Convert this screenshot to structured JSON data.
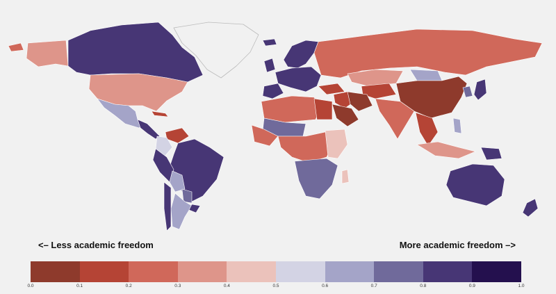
{
  "legend": {
    "left_label": "<– Less academic freedom",
    "right_label": "More academic freedom –>",
    "ticks": [
      "0.0",
      "0.1",
      "0.2",
      "0.3",
      "0.4",
      "0.5",
      "0.6",
      "0.7",
      "0.8",
      "0.9",
      "1.0"
    ],
    "bins": [
      {
        "range": "0.0–0.1",
        "color": "#8e3a2c"
      },
      {
        "range": "0.1–0.2",
        "color": "#b54435"
      },
      {
        "range": "0.2–0.3",
        "color": "#d0685a"
      },
      {
        "range": "0.3–0.4",
        "color": "#de958a"
      },
      {
        "range": "0.4–0.5",
        "color": "#ebc2bb"
      },
      {
        "range": "0.5–0.6",
        "color": "#d3d3e4"
      },
      {
        "range": "0.6–0.7",
        "color": "#a4a4c8"
      },
      {
        "range": "0.7–0.8",
        "color": "#706a9b"
      },
      {
        "range": "0.8–0.9",
        "color": "#473675"
      },
      {
        "range": "0.9–1.0",
        "color": "#24104e"
      }
    ]
  },
  "regions": [
    {
      "name": "Canada",
      "bin": 8
    },
    {
      "name": "Alaska",
      "bin": 3
    },
    {
      "name": "Greenland",
      "bin": null
    },
    {
      "name": "United States",
      "bin": 3
    },
    {
      "name": "Mexico",
      "bin": 6
    },
    {
      "name": "Central America",
      "bin": 8
    },
    {
      "name": "Cuba",
      "bin": 1
    },
    {
      "name": "Venezuela",
      "bin": 1
    },
    {
      "name": "Colombia",
      "bin": 5
    },
    {
      "name": "Brazil",
      "bin": 8
    },
    {
      "name": "Peru",
      "bin": 8
    },
    {
      "name": "Bolivia",
      "bin": 6
    },
    {
      "name": "Paraguay",
      "bin": 7
    },
    {
      "name": "Argentina",
      "bin": 6
    },
    {
      "name": "Chile",
      "bin": 8
    },
    {
      "name": "Uruguay",
      "bin": 8
    },
    {
      "name": "Scandinavia",
      "bin": 8
    },
    {
      "name": "Western Europe",
      "bin": 8
    },
    {
      "name": "Iberia",
      "bin": 8
    },
    {
      "name": "Russia",
      "bin": 2
    },
    {
      "name": "Kazakhstan",
      "bin": 3
    },
    {
      "name": "Mongolia",
      "bin": 6
    },
    {
      "name": "China",
      "bin": 0
    },
    {
      "name": "India",
      "bin": 2
    },
    {
      "name": "Middle East",
      "bin": 1
    },
    {
      "name": "Saudi Arabia",
      "bin": 0
    },
    {
      "name": "Turkey",
      "bin": 1
    },
    {
      "name": "Iran",
      "bin": 0
    },
    {
      "name": "Central Asia",
      "bin": 1
    },
    {
      "name": "Southeast Asia",
      "bin": 1
    },
    {
      "name": "Japan",
      "bin": 8
    },
    {
      "name": "Korea",
      "bin": 7
    },
    {
      "name": "Philippines",
      "bin": 6
    },
    {
      "name": "Indonesia",
      "bin": 3
    },
    {
      "name": "Papua New Guinea",
      "bin": 8
    },
    {
      "name": "Australia",
      "bin": 8
    },
    {
      "name": "New Zealand",
      "bin": 8
    },
    {
      "name": "North Africa",
      "bin": 2
    },
    {
      "name": "Egypt",
      "bin": 1
    },
    {
      "name": "West Africa",
      "bin": 2
    },
    {
      "name": "Sahel",
      "bin": 7
    },
    {
      "name": "Central Africa",
      "bin": 2
    },
    {
      "name": "East Africa",
      "bin": 4
    },
    {
      "name": "Southern Africa",
      "bin": 7
    },
    {
      "name": "Madagascar",
      "bin": 4
    },
    {
      "name": "Iceland",
      "bin": 8
    },
    {
      "name": "United Kingdom",
      "bin": 8
    }
  ]
}
